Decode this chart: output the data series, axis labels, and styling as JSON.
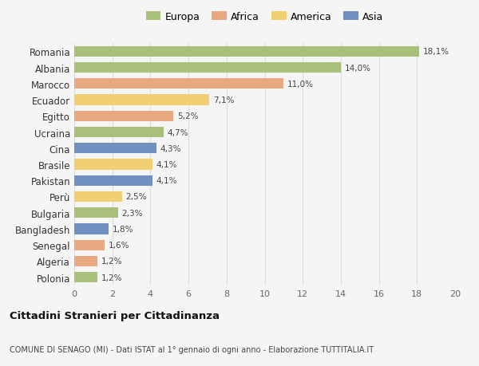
{
  "categories": [
    "Polonia",
    "Algeria",
    "Senegal",
    "Bangladesh",
    "Bulgaria",
    "Perù",
    "Pakistan",
    "Brasile",
    "Cina",
    "Ucraina",
    "Egitto",
    "Ecuador",
    "Marocco",
    "Albania",
    "Romania"
  ],
  "values": [
    1.2,
    1.2,
    1.6,
    1.8,
    2.3,
    2.5,
    4.1,
    4.1,
    4.3,
    4.7,
    5.2,
    7.1,
    11.0,
    14.0,
    18.1
  ],
  "labels": [
    "1,2%",
    "1,2%",
    "1,6%",
    "1,8%",
    "2,3%",
    "2,5%",
    "4,1%",
    "4,1%",
    "4,3%",
    "4,7%",
    "5,2%",
    "7,1%",
    "11,0%",
    "14,0%",
    "18,1%"
  ],
  "continents": [
    "Europa",
    "Africa",
    "Africa",
    "Asia",
    "Europa",
    "America",
    "Asia",
    "America",
    "Asia",
    "Europa",
    "Africa",
    "America",
    "Africa",
    "Europa",
    "Europa"
  ],
  "colors": {
    "Europa": "#a8c07a",
    "Africa": "#e8a882",
    "America": "#f0d070",
    "Asia": "#7090c0"
  },
  "legend_labels": [
    "Europa",
    "Africa",
    "America",
    "Asia"
  ],
  "legend_colors": [
    "#a8c07a",
    "#e8a882",
    "#f0d070",
    "#7090c0"
  ],
  "title": "Cittadini Stranieri per Cittadinanza",
  "subtitle": "COMUNE DI SENAGO (MI) - Dati ISTAT al 1° gennaio di ogni anno - Elaborazione TUTTITALIA.IT",
  "xlim": [
    0,
    20
  ],
  "xticks": [
    0,
    2,
    4,
    6,
    8,
    10,
    12,
    14,
    16,
    18,
    20
  ],
  "background_color": "#f5f5f5",
  "bar_height": 0.65,
  "grid_color": "#dddddd"
}
